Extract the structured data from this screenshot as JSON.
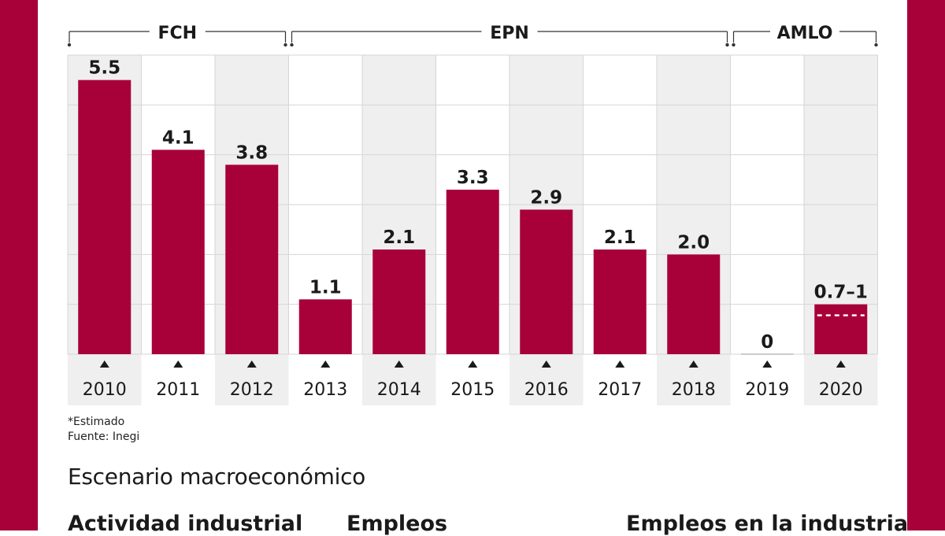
{
  "colors": {
    "bar": "#a80039",
    "band": "#a80039",
    "shade": "#efefef",
    "grid": "#d6d6d6"
  },
  "chart_data": {
    "type": "bar",
    "categories": [
      "2010",
      "2011",
      "2012",
      "2013",
      "2014",
      "2015",
      "2016",
      "2017",
      "2018",
      "2019",
      "2020"
    ],
    "values": [
      5.5,
      4.1,
      3.8,
      1.1,
      2.1,
      3.3,
      2.9,
      2.1,
      2.0,
      0,
      1.0
    ],
    "value_labels": [
      "5.5",
      "4.1",
      "3.8",
      "1.1",
      "2.1",
      "3.3",
      "2.9",
      "2.1",
      "2.0",
      "0",
      "0.7–1"
    ],
    "estimate_range": {
      "category": "2020",
      "low": 0.7,
      "high": 1.0
    },
    "ylim": [
      0,
      6
    ],
    "groups": [
      {
        "label": "FCH",
        "from": "2010",
        "to": "2012"
      },
      {
        "label": "EPN",
        "from": "2013",
        "to": "2018"
      },
      {
        "label": "AMLO",
        "from": "2019",
        "to": "2020"
      }
    ],
    "grid": true,
    "title": "",
    "xlabel": "",
    "ylabel": ""
  },
  "footnotes": {
    "estimated": "*Estimado",
    "source": "Fuente: Inegi"
  },
  "section": {
    "title": "Escenario macroeconómico",
    "subtitles": [
      "Actividad industrial",
      "Empleos",
      "Empleos en la industria"
    ]
  }
}
